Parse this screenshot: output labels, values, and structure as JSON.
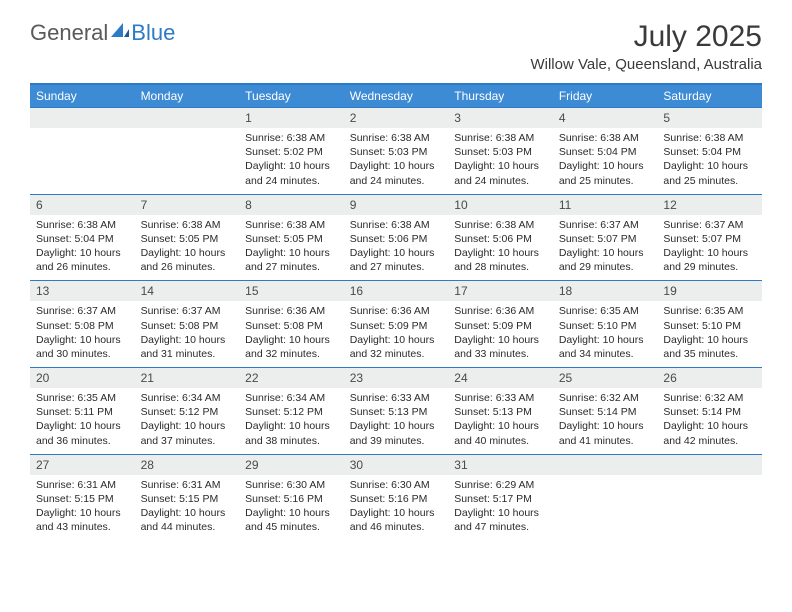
{
  "brand": {
    "general": "General",
    "blue": "Blue"
  },
  "title": "July 2025",
  "location": "Willow Vale, Queensland, Australia",
  "colors": {
    "accent": "#2d7bc4",
    "header_bg": "#3c8bd4",
    "num_bg": "#eceded",
    "text": "#2a2a2a"
  },
  "day_headers": [
    "Sunday",
    "Monday",
    "Tuesday",
    "Wednesday",
    "Thursday",
    "Friday",
    "Saturday"
  ],
  "weeks": [
    [
      {
        "n": "",
        "sr": "",
        "ss": "",
        "dl": ""
      },
      {
        "n": "",
        "sr": "",
        "ss": "",
        "dl": ""
      },
      {
        "n": "1",
        "sr": "6:38 AM",
        "ss": "5:02 PM",
        "dl": "10 hours and 24 minutes."
      },
      {
        "n": "2",
        "sr": "6:38 AM",
        "ss": "5:03 PM",
        "dl": "10 hours and 24 minutes."
      },
      {
        "n": "3",
        "sr": "6:38 AM",
        "ss": "5:03 PM",
        "dl": "10 hours and 24 minutes."
      },
      {
        "n": "4",
        "sr": "6:38 AM",
        "ss": "5:04 PM",
        "dl": "10 hours and 25 minutes."
      },
      {
        "n": "5",
        "sr": "6:38 AM",
        "ss": "5:04 PM",
        "dl": "10 hours and 25 minutes."
      }
    ],
    [
      {
        "n": "6",
        "sr": "6:38 AM",
        "ss": "5:04 PM",
        "dl": "10 hours and 26 minutes."
      },
      {
        "n": "7",
        "sr": "6:38 AM",
        "ss": "5:05 PM",
        "dl": "10 hours and 26 minutes."
      },
      {
        "n": "8",
        "sr": "6:38 AM",
        "ss": "5:05 PM",
        "dl": "10 hours and 27 minutes."
      },
      {
        "n": "9",
        "sr": "6:38 AM",
        "ss": "5:06 PM",
        "dl": "10 hours and 27 minutes."
      },
      {
        "n": "10",
        "sr": "6:38 AM",
        "ss": "5:06 PM",
        "dl": "10 hours and 28 minutes."
      },
      {
        "n": "11",
        "sr": "6:37 AM",
        "ss": "5:07 PM",
        "dl": "10 hours and 29 minutes."
      },
      {
        "n": "12",
        "sr": "6:37 AM",
        "ss": "5:07 PM",
        "dl": "10 hours and 29 minutes."
      }
    ],
    [
      {
        "n": "13",
        "sr": "6:37 AM",
        "ss": "5:08 PM",
        "dl": "10 hours and 30 minutes."
      },
      {
        "n": "14",
        "sr": "6:37 AM",
        "ss": "5:08 PM",
        "dl": "10 hours and 31 minutes."
      },
      {
        "n": "15",
        "sr": "6:36 AM",
        "ss": "5:08 PM",
        "dl": "10 hours and 32 minutes."
      },
      {
        "n": "16",
        "sr": "6:36 AM",
        "ss": "5:09 PM",
        "dl": "10 hours and 32 minutes."
      },
      {
        "n": "17",
        "sr": "6:36 AM",
        "ss": "5:09 PM",
        "dl": "10 hours and 33 minutes."
      },
      {
        "n": "18",
        "sr": "6:35 AM",
        "ss": "5:10 PM",
        "dl": "10 hours and 34 minutes."
      },
      {
        "n": "19",
        "sr": "6:35 AM",
        "ss": "5:10 PM",
        "dl": "10 hours and 35 minutes."
      }
    ],
    [
      {
        "n": "20",
        "sr": "6:35 AM",
        "ss": "5:11 PM",
        "dl": "10 hours and 36 minutes."
      },
      {
        "n": "21",
        "sr": "6:34 AM",
        "ss": "5:12 PM",
        "dl": "10 hours and 37 minutes."
      },
      {
        "n": "22",
        "sr": "6:34 AM",
        "ss": "5:12 PM",
        "dl": "10 hours and 38 minutes."
      },
      {
        "n": "23",
        "sr": "6:33 AM",
        "ss": "5:13 PM",
        "dl": "10 hours and 39 minutes."
      },
      {
        "n": "24",
        "sr": "6:33 AM",
        "ss": "5:13 PM",
        "dl": "10 hours and 40 minutes."
      },
      {
        "n": "25",
        "sr": "6:32 AM",
        "ss": "5:14 PM",
        "dl": "10 hours and 41 minutes."
      },
      {
        "n": "26",
        "sr": "6:32 AM",
        "ss": "5:14 PM",
        "dl": "10 hours and 42 minutes."
      }
    ],
    [
      {
        "n": "27",
        "sr": "6:31 AM",
        "ss": "5:15 PM",
        "dl": "10 hours and 43 minutes."
      },
      {
        "n": "28",
        "sr": "6:31 AM",
        "ss": "5:15 PM",
        "dl": "10 hours and 44 minutes."
      },
      {
        "n": "29",
        "sr": "6:30 AM",
        "ss": "5:16 PM",
        "dl": "10 hours and 45 minutes."
      },
      {
        "n": "30",
        "sr": "6:30 AM",
        "ss": "5:16 PM",
        "dl": "10 hours and 46 minutes."
      },
      {
        "n": "31",
        "sr": "6:29 AM",
        "ss": "5:17 PM",
        "dl": "10 hours and 47 minutes."
      },
      {
        "n": "",
        "sr": "",
        "ss": "",
        "dl": ""
      },
      {
        "n": "",
        "sr": "",
        "ss": "",
        "dl": ""
      }
    ]
  ],
  "labels": {
    "sunrise": "Sunrise:",
    "sunset": "Sunset:",
    "daylight": "Daylight:"
  }
}
